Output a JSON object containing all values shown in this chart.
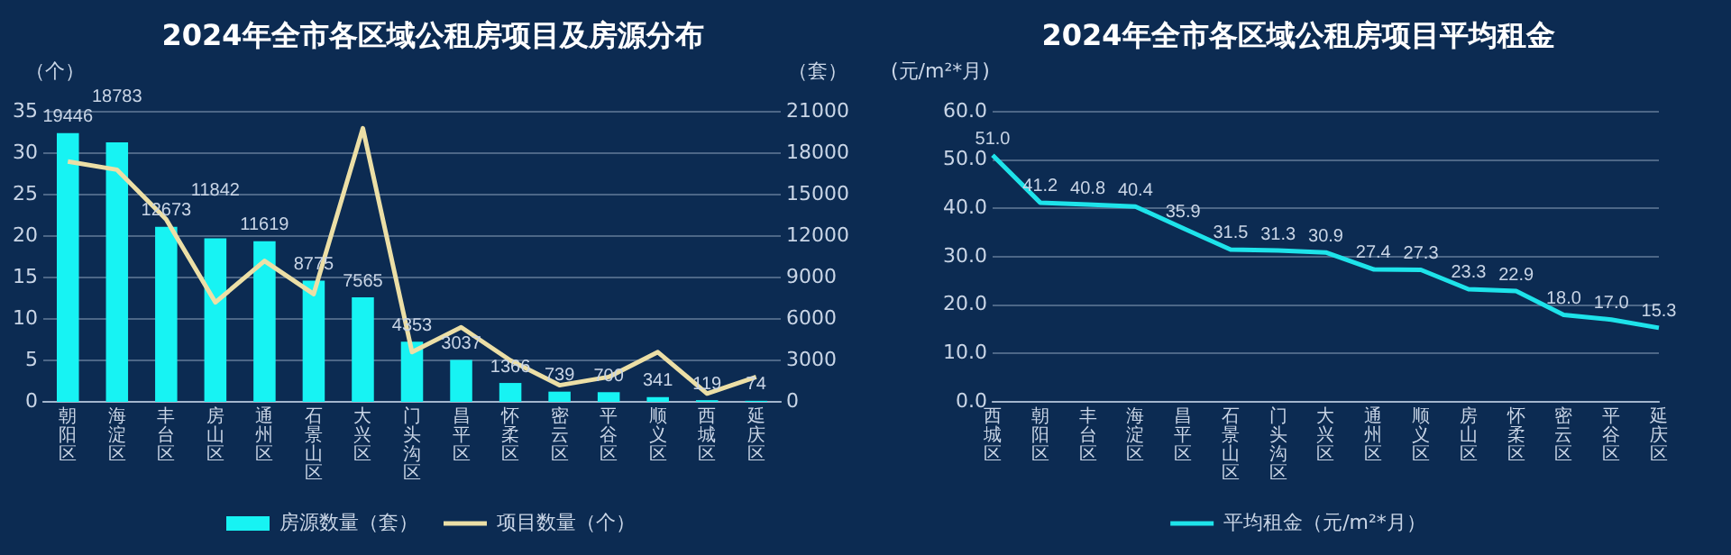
{
  "chart_data": [
    {
      "type": "bar",
      "title": "2024年全市各区域公租房项目及房源分布",
      "ylabel": "（个）",
      "y2label": "（套）",
      "categories": [
        "朝阳区",
        "海淀区",
        "丰台区",
        "房山区",
        "通州区",
        "石景山区",
        "大兴区",
        "门头沟区",
        "昌平区",
        "怀柔区",
        "密云区",
        "平谷区",
        "顺义区",
        "西城区",
        "延庆区"
      ],
      "series": [
        {
          "name": "房源数量（套）",
          "type": "bar",
          "axis": "y2",
          "color": "#17f3f3",
          "values": [
            19446,
            18783,
            12673,
            11842,
            11619,
            8775,
            7565,
            4353,
            3037,
            1366,
            739,
            700,
            341,
            119,
            74
          ],
          "value_labels": [
            "19446",
            "18783",
            "12673",
            "11842",
            "11619",
            "8775",
            "7565",
            "4353",
            "3037",
            "1366",
            "739",
            "700",
            "341",
            "119",
            "74"
          ]
        },
        {
          "name": "项目数量（个）",
          "type": "line",
          "color": "#ecdfa6",
          "values": [
            29,
            28,
            22,
            12,
            17,
            13,
            33,
            6,
            9,
            5,
            2,
            3,
            6,
            1,
            3
          ]
        }
      ],
      "ylim": [
        0,
        35
      ],
      "yticks": [
        0,
        5,
        10,
        15,
        20,
        25,
        30,
        35
      ],
      "y2lim": [
        0,
        21000
      ],
      "y2ticks": [
        0,
        3000,
        6000,
        9000,
        12000,
        15000,
        18000,
        21000
      ],
      "grid": "y",
      "legend": "bottom",
      "marker": "none"
    },
    {
      "type": "line",
      "title": "2024年全市各区域公租房项目平均租金",
      "ylabel": "(元/m²*月)",
      "categories": [
        "西城区",
        "朝阳区",
        "丰台区",
        "海淀区",
        "昌平区",
        "石景山区",
        "门头沟区",
        "大兴区",
        "通州区",
        "顺义区",
        "房山区",
        "怀柔区",
        "密云区",
        "平谷区",
        "延庆区"
      ],
      "series": [
        {
          "name": "平均租金（元/m²*月）",
          "color": "#1ee3ea",
          "values": [
            51.0,
            41.2,
            40.8,
            40.4,
            35.9,
            31.5,
            31.3,
            30.9,
            27.4,
            27.3,
            23.3,
            22.9,
            18.0,
            17.0,
            15.3
          ],
          "value_labels": [
            "51.0",
            "41.2",
            "40.8",
            "40.4",
            "35.9",
            "31.5",
            "31.3",
            "30.9",
            "27.4",
            "27.3",
            "23.3",
            "22.9",
            "18.0",
            "17.0",
            "15.3"
          ]
        }
      ],
      "ylim": [
        0,
        60
      ],
      "yticks": [
        {
          "value": 0,
          "label": "0.0"
        },
        {
          "value": 10,
          "label": "10.0"
        },
        {
          "value": 20,
          "label": "20.0"
        },
        {
          "value": 30,
          "label": "30.0"
        },
        {
          "value": 40,
          "label": "40.0"
        },
        {
          "value": 50,
          "label": "50.0"
        },
        {
          "value": 60,
          "label": "60.0"
        }
      ],
      "grid": "y",
      "legend": "bottom",
      "marker": "none"
    }
  ]
}
